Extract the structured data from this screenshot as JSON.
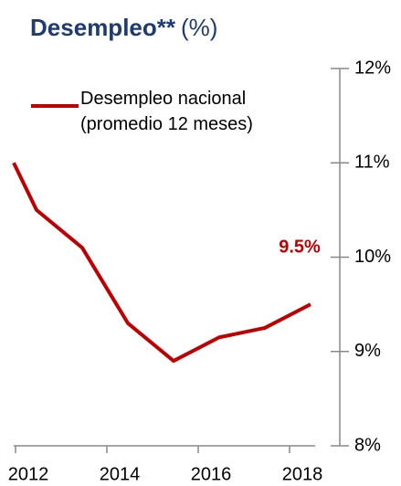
{
  "chart_data": {
    "type": "line",
    "title": "Desempleo**",
    "title_suffix": "(%)",
    "x": [
      2012.0,
      2012.5,
      2013.5,
      2014.5,
      2015.5,
      2016.5,
      2017.5,
      2018.5
    ],
    "series": [
      {
        "name": "Desempleo nacional (promedio 12 meses)",
        "color": "#c00000",
        "values": [
          11.0,
          10.5,
          10.1,
          9.3,
          8.9,
          9.15,
          9.25,
          9.5
        ],
        "value_labels": [
          null,
          null,
          null,
          null,
          null,
          null,
          null,
          "9.5%"
        ]
      }
    ],
    "xlim": [
      2012.0,
      2018.6
    ],
    "xticks": [
      2012,
      2014,
      2016,
      2018
    ],
    "ylim": [
      8,
      12
    ],
    "yticks": [
      {
        "value": 8,
        "label": "8%"
      },
      {
        "value": 9,
        "label": "9%"
      },
      {
        "value": 10,
        "label": "10%"
      },
      {
        "value": 11,
        "label": "11%"
      },
      {
        "value": 12,
        "label": "12%"
      }
    ],
    "y_axis_side": "right",
    "legend": "upper left"
  }
}
